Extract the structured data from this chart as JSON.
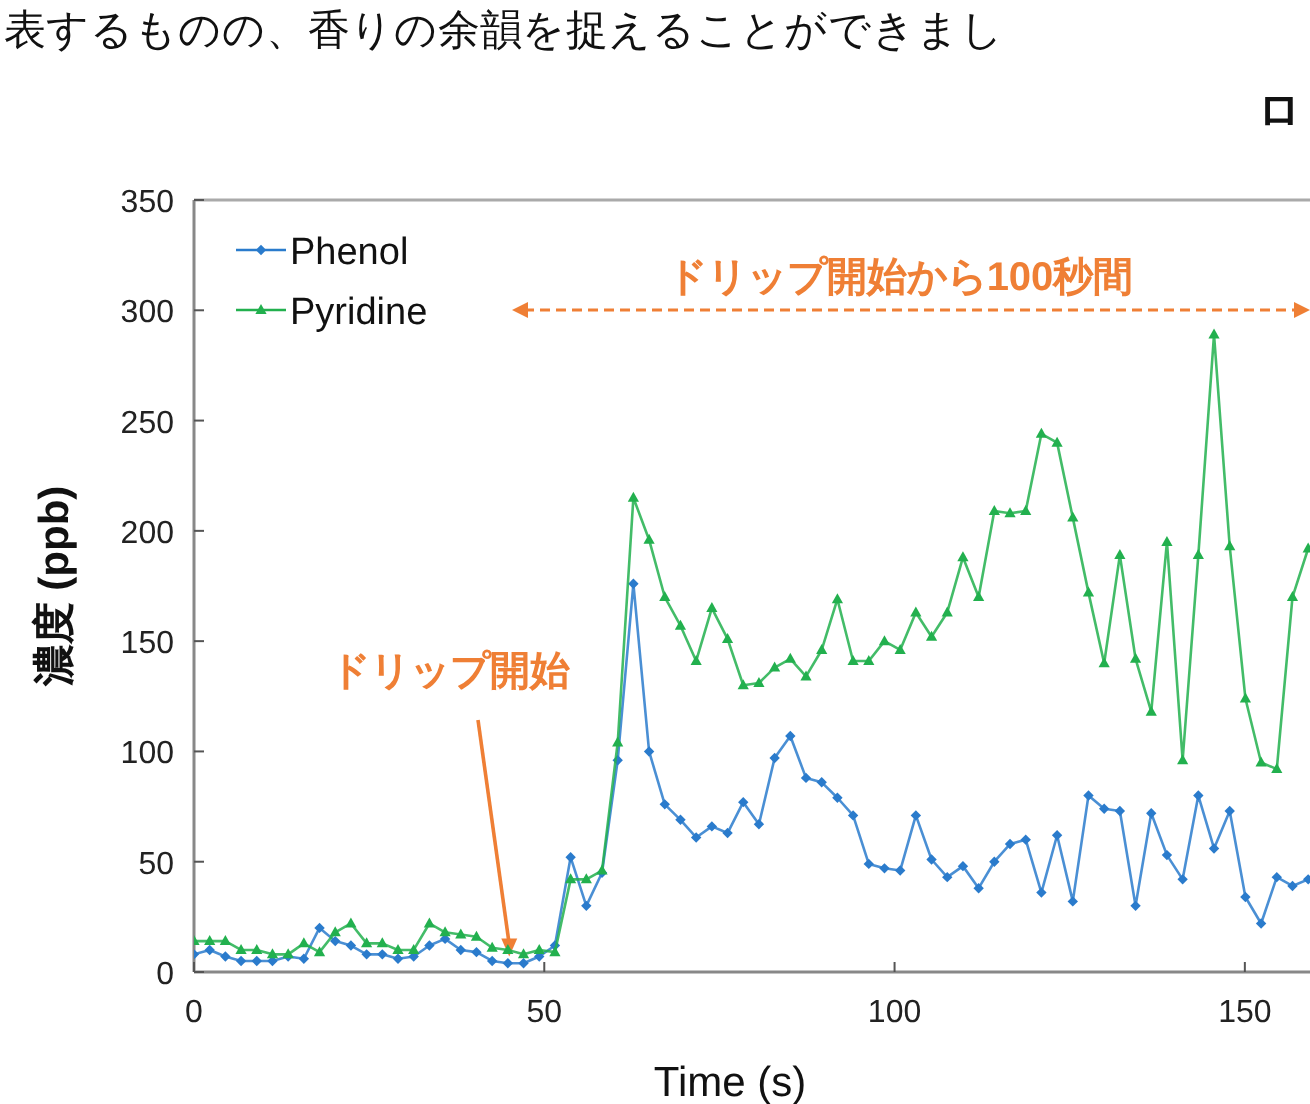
{
  "chart_data": {
    "type": "line",
    "xlabel": "Time (s)",
    "ylabel": "濃度 (ppb)",
    "x": [
      0,
      2.24,
      4.48,
      6.72,
      8.96,
      11.2,
      13.44,
      15.68,
      17.92,
      20.16,
      22.4,
      24.64,
      26.88,
      29.12,
      31.36,
      33.6,
      35.84,
      38.08,
      40.32,
      42.56,
      44.8,
      47.04,
      49.28,
      51.52,
      53.76,
      56,
      58.24,
      60.48,
      62.72,
      64.96,
      67.2,
      69.44,
      71.68,
      73.92,
      76.16,
      78.4,
      80.64,
      82.88,
      85.12,
      87.36,
      89.6,
      91.84,
      94.08,
      96.32,
      98.56,
      100.8,
      103.04,
      105.28,
      107.52,
      109.76,
      112,
      114.24,
      116.48,
      118.72,
      120.96,
      123.2,
      125.44,
      127.68,
      129.92,
      132.16,
      134.4,
      136.64,
      138.88,
      141.12,
      143.36,
      145.6,
      147.84,
      150.08,
      152.32,
      154.56,
      156.8,
      159.04
    ],
    "series": [
      {
        "name": "Phenol",
        "color": "#2a7bcc",
        "marker": "diamond",
        "values": [
          8,
          10,
          7,
          5,
          5,
          5,
          7,
          6,
          20,
          14,
          12,
          8,
          8,
          6,
          7,
          12,
          15,
          10,
          9,
          5,
          4,
          4,
          7,
          12,
          52,
          30,
          45,
          96,
          176,
          100,
          76,
          69,
          61,
          66,
          63,
          77,
          67,
          97,
          107,
          88,
          86,
          79,
          71,
          49,
          47,
          46,
          71,
          51,
          43,
          48,
          38,
          50,
          58,
          60,
          36,
          62,
          32,
          80,
          74,
          73,
          30,
          72,
          53,
          42,
          80,
          56,
          73,
          34,
          22,
          43,
          39,
          42
        ]
      },
      {
        "name": "Pyridine",
        "color": "#22b04e",
        "marker": "triangle",
        "values": [
          14,
          14,
          14,
          10,
          10,
          8,
          8,
          13,
          9,
          18,
          22,
          13,
          13,
          10,
          10,
          22,
          18,
          17,
          16,
          11,
          10,
          8,
          10,
          9,
          42,
          42,
          46,
          104,
          215,
          196,
          170,
          157,
          141,
          165,
          151,
          130,
          131,
          138,
          142,
          134,
          146,
          169,
          141,
          141,
          150,
          146,
          163,
          152,
          163,
          188,
          170,
          209,
          208,
          209,
          244,
          240,
          206,
          172,
          140,
          189,
          142,
          118,
          195,
          96,
          189,
          289,
          193,
          124,
          95,
          92,
          170,
          192
        ]
      }
    ],
    "xlim": [
      0,
      159.3
    ],
    "ylim": [
      0,
      350
    ],
    "xticks": [
      0,
      50,
      100,
      150
    ],
    "yticks": [
      0,
      50,
      100,
      150,
      200,
      250,
      300,
      350
    ],
    "legend": "top left",
    "grid": false,
    "annotations": [
      {
        "text": "ドリップ開始",
        "x": 45,
        "y": 7
      },
      "ドリップ開始から100秒間",
      "表するものの、香りの余韻を捉えることができまし",
      "ロ"
    ]
  }
}
